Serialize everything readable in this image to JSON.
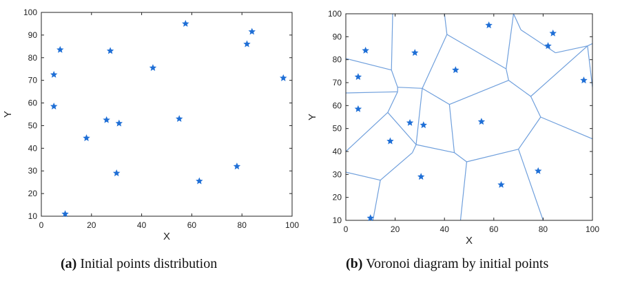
{
  "chart_data": [
    {
      "type": "scatter",
      "panel": "a",
      "xlabel": "X",
      "ylabel": "Y",
      "xlim": [
        0,
        100
      ],
      "ylim": [
        10,
        100
      ],
      "xticks": [
        0,
        20,
        40,
        60,
        80,
        100
      ],
      "yticks": [
        10,
        20,
        30,
        40,
        50,
        60,
        70,
        80,
        90,
        100
      ],
      "grid": false,
      "marker": "star",
      "marker_color": "#1f6fd6",
      "points": [
        {
          "x": 5,
          "y": 72.5
        },
        {
          "x": 5,
          "y": 58.5
        },
        {
          "x": 7.5,
          "y": 83.5
        },
        {
          "x": 9.5,
          "y": 11
        },
        {
          "x": 18,
          "y": 44.5
        },
        {
          "x": 26,
          "y": 52.5
        },
        {
          "x": 27.5,
          "y": 83
        },
        {
          "x": 30,
          "y": 29
        },
        {
          "x": 31,
          "y": 51
        },
        {
          "x": 44.5,
          "y": 75.5
        },
        {
          "x": 55,
          "y": 53
        },
        {
          "x": 57.5,
          "y": 95
        },
        {
          "x": 63,
          "y": 25.5
        },
        {
          "x": 78,
          "y": 32
        },
        {
          "x": 82,
          "y": 86
        },
        {
          "x": 84,
          "y": 91.5
        },
        {
          "x": 96.5,
          "y": 71
        }
      ]
    },
    {
      "type": "scatter",
      "panel": "b",
      "xlabel": "X",
      "ylabel": "Y",
      "xlim": [
        0,
        100
      ],
      "ylim": [
        10,
        100
      ],
      "xticks": [
        0,
        20,
        40,
        60,
        80,
        100
      ],
      "yticks": [
        10,
        20,
        30,
        40,
        50,
        60,
        70,
        80,
        90,
        100
      ],
      "grid": false,
      "marker": "star",
      "marker_color": "#1f6fd6",
      "edge_color": "#6f9fdc",
      "points": [
        {
          "x": 5,
          "y": 72.5
        },
        {
          "x": 5,
          "y": 58.5
        },
        {
          "x": 8,
          "y": 84
        },
        {
          "x": 10,
          "y": 11
        },
        {
          "x": 18,
          "y": 44.5
        },
        {
          "x": 26,
          "y": 52.5
        },
        {
          "x": 28,
          "y": 83
        },
        {
          "x": 30.5,
          "y": 29
        },
        {
          "x": 31.5,
          "y": 51.5
        },
        {
          "x": 44.5,
          "y": 75.5
        },
        {
          "x": 55,
          "y": 53
        },
        {
          "x": 58,
          "y": 95
        },
        {
          "x": 63,
          "y": 25.5
        },
        {
          "x": 78,
          "y": 31.5
        },
        {
          "x": 82,
          "y": 86
        },
        {
          "x": 84,
          "y": 91.5
        },
        {
          "x": 96.5,
          "y": 71
        }
      ],
      "voronoi_edges": [
        [
          [
            0,
            80.5
          ],
          [
            18.5,
            75.5
          ]
        ],
        [
          [
            18.5,
            75.5
          ],
          [
            19,
            100
          ]
        ],
        [
          [
            18.5,
            75.5
          ],
          [
            21,
            68
          ]
        ],
        [
          [
            0,
            65.5
          ],
          [
            21,
            66
          ]
        ],
        [
          [
            21,
            66
          ],
          [
            21,
            68
          ]
        ],
        [
          [
            21,
            68
          ],
          [
            31,
            67.5
          ]
        ],
        [
          [
            21,
            66
          ],
          [
            17,
            57
          ]
        ],
        [
          [
            0,
            40
          ],
          [
            17,
            57
          ]
        ],
        [
          [
            17,
            57
          ],
          [
            28.5,
            43
          ]
        ],
        [
          [
            28.5,
            43
          ],
          [
            31,
            67.5
          ]
        ],
        [
          [
            31,
            67.5
          ],
          [
            41,
            91
          ]
        ],
        [
          [
            41,
            91
          ],
          [
            40,
            100
          ]
        ],
        [
          [
            41,
            91
          ],
          [
            65,
            76
          ]
        ],
        [
          [
            65,
            76
          ],
          [
            68,
            100
          ]
        ],
        [
          [
            65,
            76
          ],
          [
            66,
            71
          ]
        ],
        [
          [
            66,
            71
          ],
          [
            42,
            60.5
          ]
        ],
        [
          [
            31,
            67.5
          ],
          [
            42,
            60.5
          ]
        ],
        [
          [
            42,
            60.5
          ],
          [
            44,
            39.5
          ]
        ],
        [
          [
            28.5,
            43
          ],
          [
            44,
            39.5
          ]
        ],
        [
          [
            28.5,
            43
          ],
          [
            27,
            39.5
          ]
        ],
        [
          [
            27,
            39.5
          ],
          [
            14,
            27.5
          ]
        ],
        [
          [
            0,
            31
          ],
          [
            14,
            27.5
          ]
        ],
        [
          [
            14,
            27.5
          ],
          [
            11,
            10
          ]
        ],
        [
          [
            44,
            39.5
          ],
          [
            49,
            35.5
          ]
        ],
        [
          [
            49,
            35.5
          ],
          [
            46.5,
            10
          ]
        ],
        [
          [
            49,
            35.5
          ],
          [
            70,
            41
          ]
        ],
        [
          [
            70,
            41
          ],
          [
            80,
            10
          ]
        ],
        [
          [
            70,
            41
          ],
          [
            79,
            55
          ]
        ],
        [
          [
            79,
            55
          ],
          [
            100,
            45.5
          ]
        ],
        [
          [
            79,
            55
          ],
          [
            75,
            64
          ]
        ],
        [
          [
            66,
            71
          ],
          [
            75,
            64
          ]
        ],
        [
          [
            75,
            64
          ],
          [
            98,
            86
          ]
        ],
        [
          [
            98,
            86
          ],
          [
            100,
            87
          ]
        ],
        [
          [
            98,
            86
          ],
          [
            85,
            83
          ]
        ],
        [
          [
            85,
            83
          ],
          [
            71,
            93
          ]
        ],
        [
          [
            71,
            93
          ],
          [
            68,
            100
          ]
        ],
        [
          [
            98,
            86
          ],
          [
            100,
            68
          ]
        ]
      ]
    }
  ],
  "captions": [
    {
      "label": "(a)",
      "text": " Initial points distribution"
    },
    {
      "label": "(b)",
      "text": " Voronoi diagram by initial points"
    }
  ]
}
